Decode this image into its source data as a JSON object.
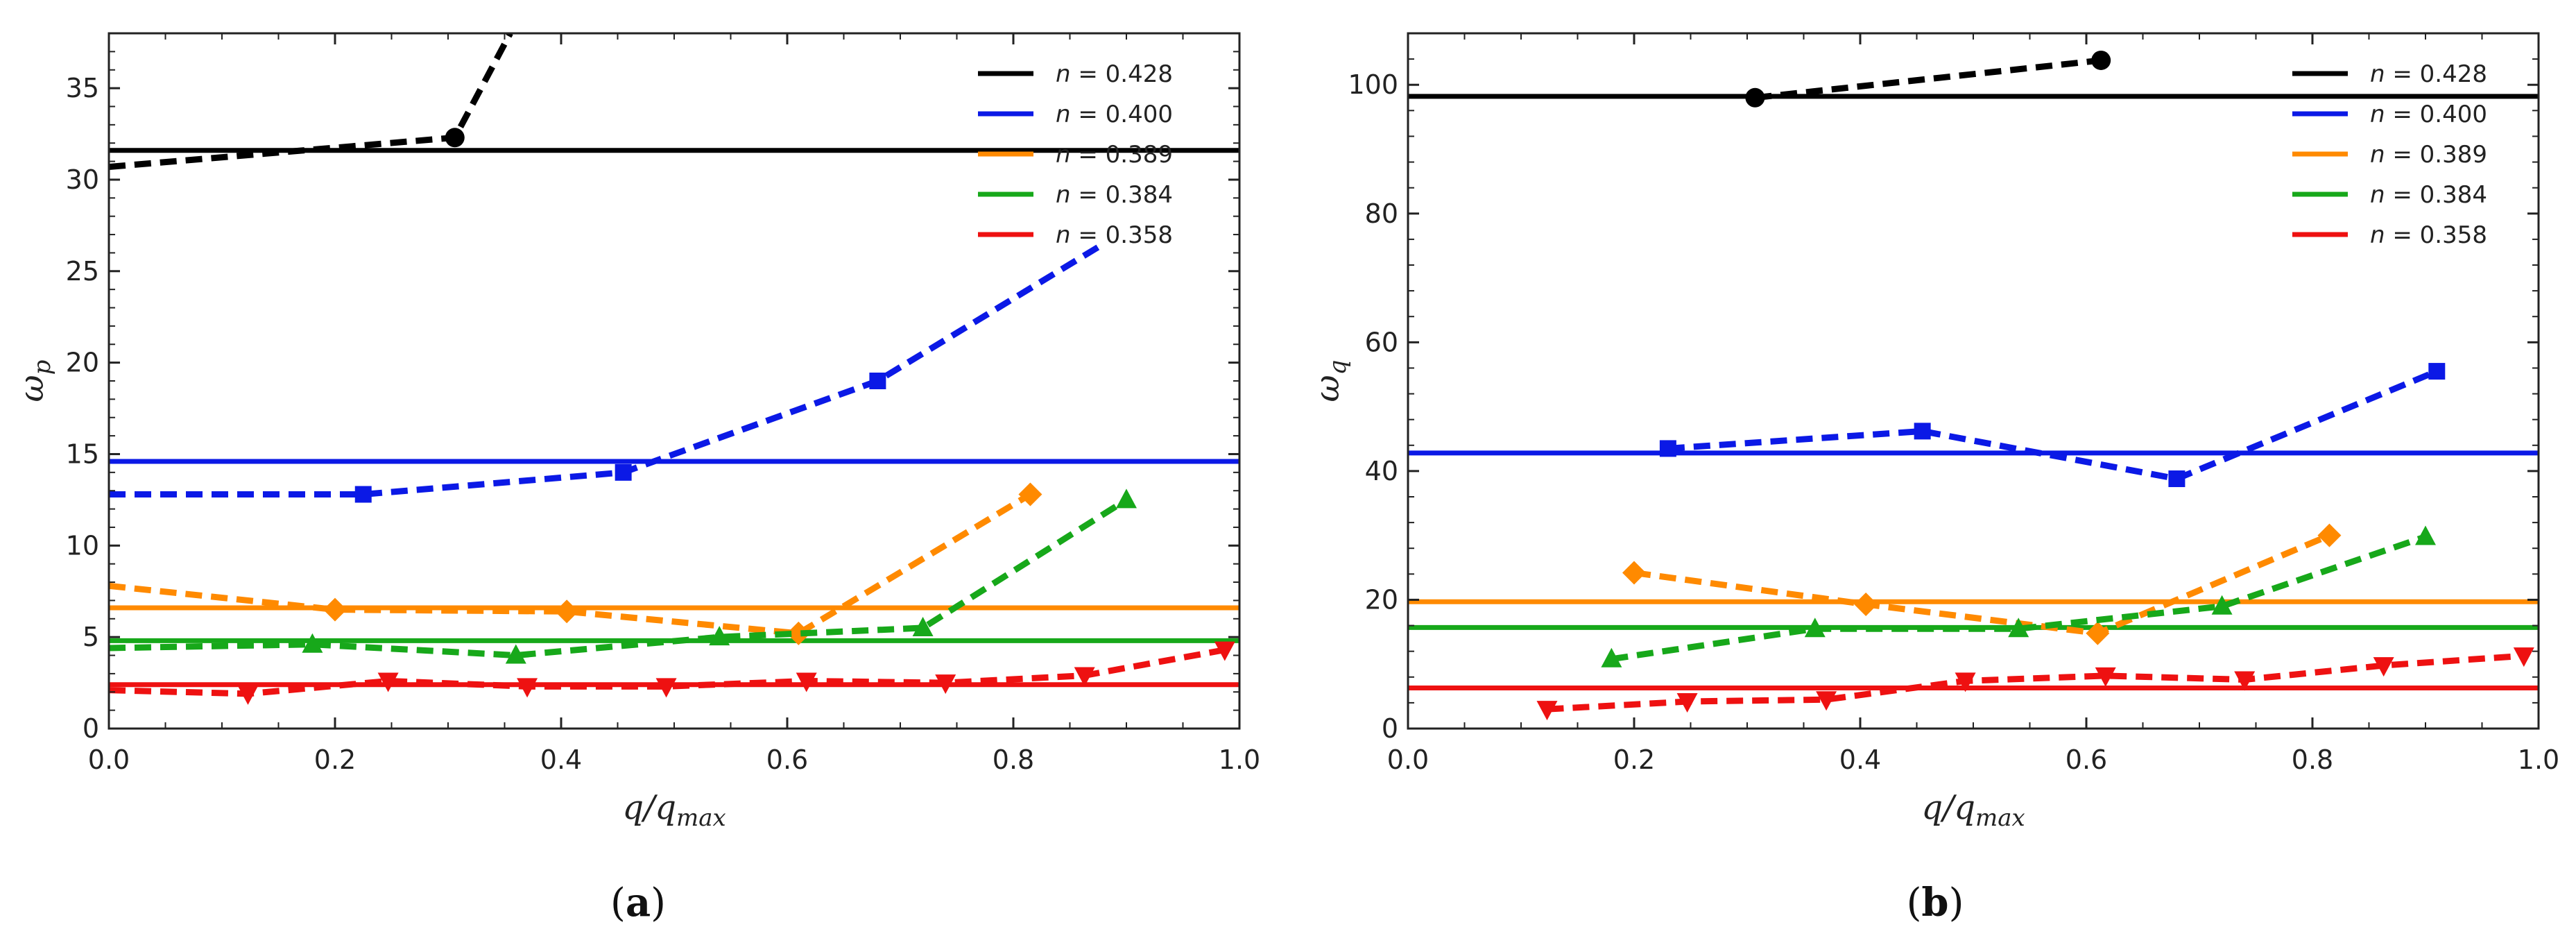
{
  "chart_data": [
    {
      "type": "line",
      "caption": "(a)",
      "xlabel": "q/q",
      "xlabel_sub": "max",
      "ylabel": "ω",
      "ylabel_sub": "p",
      "xlim": [
        0,
        1
      ],
      "ylim": [
        0,
        38
      ],
      "xticks": [
        "0.0",
        "0.2",
        "0.4",
        "0.6",
        "0.8",
        "1.0"
      ],
      "xtick_values": [
        0,
        0.2,
        0.4,
        0.6,
        0.8,
        1.0
      ],
      "yticks": [
        "0",
        "5",
        "10",
        "15",
        "20",
        "25",
        "30",
        "35"
      ],
      "ytick_values": [
        0,
        5,
        10,
        15,
        20,
        25,
        30,
        35
      ],
      "grid": false,
      "legend_position": "top-right",
      "series": [
        {
          "n_label": "0.428",
          "color": "#000000",
          "marker": "circle",
          "horizontal": 31.6,
          "points": [
            [
              0.0,
              30.7
            ],
            [
              0.306,
              32.3
            ],
            [
              0.355,
              38
            ]
          ],
          "marked": [
            [
              0.306,
              32.3
            ]
          ]
        },
        {
          "n_label": "0.400",
          "color": "#0b19e6",
          "marker": "square",
          "horizontal": 14.6,
          "points": [
            [
              0.0,
              12.8
            ],
            [
              0.225,
              12.8
            ],
            [
              0.455,
              14.0
            ],
            [
              0.68,
              19.0
            ],
            [
              0.88,
              26.5
            ]
          ],
          "marked": [
            [
              0.225,
              12.8
            ],
            [
              0.455,
              14.0
            ],
            [
              0.68,
              19.0
            ]
          ]
        },
        {
          "n_label": "0.389",
          "color": "#ff8a00",
          "marker": "diamond",
          "horizontal": 6.6,
          "points": [
            [
              0.0,
              7.8
            ],
            [
              0.2,
              6.5
            ],
            [
              0.405,
              6.4
            ],
            [
              0.61,
              5.2
            ],
            [
              0.815,
              12.8
            ]
          ],
          "marked": [
            [
              0.2,
              6.5
            ],
            [
              0.405,
              6.4
            ],
            [
              0.61,
              5.2
            ],
            [
              0.815,
              12.8
            ]
          ]
        },
        {
          "n_label": "0.384",
          "color": "#17a81a",
          "marker": "triangle-up",
          "horizontal": 4.8,
          "points": [
            [
              0.0,
              4.4
            ],
            [
              0.18,
              4.6
            ],
            [
              0.36,
              4.0
            ],
            [
              0.54,
              5.0
            ],
            [
              0.72,
              5.5
            ],
            [
              0.9,
              12.5
            ]
          ],
          "marked": [
            [
              0.18,
              4.6
            ],
            [
              0.36,
              4.0
            ],
            [
              0.54,
              5.0
            ],
            [
              0.72,
              5.5
            ],
            [
              0.9,
              12.5
            ]
          ]
        },
        {
          "n_label": "0.358",
          "color": "#ee1111",
          "marker": "triangle-down",
          "horizontal": 2.4,
          "points": [
            [
              0.0,
              2.1
            ],
            [
              0.123,
              1.9
            ],
            [
              0.247,
              2.6
            ],
            [
              0.37,
              2.3
            ],
            [
              0.493,
              2.3
            ],
            [
              0.617,
              2.6
            ],
            [
              0.74,
              2.5
            ],
            [
              0.863,
              2.9
            ],
            [
              0.987,
              4.3
            ]
          ],
          "marked": [
            [
              0.123,
              1.9
            ],
            [
              0.247,
              2.6
            ],
            [
              0.37,
              2.3
            ],
            [
              0.493,
              2.3
            ],
            [
              0.617,
              2.6
            ],
            [
              0.74,
              2.5
            ],
            [
              0.863,
              2.9
            ],
            [
              0.987,
              4.3
            ]
          ]
        }
      ]
    },
    {
      "type": "line",
      "caption": "(b)",
      "xlabel": "q/q",
      "xlabel_sub": "max",
      "ylabel": "ω",
      "ylabel_sub": "q",
      "xlim": [
        0,
        1
      ],
      "ylim": [
        0,
        108
      ],
      "xticks": [
        "0.0",
        "0.2",
        "0.4",
        "0.6",
        "0.8",
        "1.0"
      ],
      "xtick_values": [
        0,
        0.2,
        0.4,
        0.6,
        0.8,
        1.0
      ],
      "yticks": [
        "0",
        "20",
        "40",
        "60",
        "80",
        "100"
      ],
      "ytick_values": [
        0,
        20,
        40,
        60,
        80,
        100
      ],
      "grid": false,
      "legend_position": "top-right",
      "series": [
        {
          "n_label": "0.428",
          "color": "#000000",
          "marker": "circle",
          "horizontal": 98.2,
          "points": [
            [
              0.307,
              98.0
            ],
            [
              0.613,
              103.8
            ]
          ],
          "marked": [
            [
              0.307,
              98.0
            ],
            [
              0.613,
              103.8
            ]
          ]
        },
        {
          "n_label": "0.400",
          "color": "#0b19e6",
          "marker": "square",
          "horizontal": 42.8,
          "points": [
            [
              0.23,
              43.5
            ],
            [
              0.455,
              46.2
            ],
            [
              0.68,
              38.8
            ],
            [
              0.91,
              55.5
            ]
          ],
          "marked": [
            [
              0.23,
              43.5
            ],
            [
              0.455,
              46.2
            ],
            [
              0.68,
              38.8
            ],
            [
              0.91,
              55.5
            ]
          ]
        },
        {
          "n_label": "0.389",
          "color": "#ff8a00",
          "marker": "diamond",
          "horizontal": 19.7,
          "points": [
            [
              0.2,
              24.2
            ],
            [
              0.405,
              19.3
            ],
            [
              0.61,
              14.8
            ],
            [
              0.815,
              30.0
            ]
          ],
          "marked": [
            [
              0.2,
              24.2
            ],
            [
              0.405,
              19.3
            ],
            [
              0.61,
              14.8
            ],
            [
              0.815,
              30.0
            ]
          ]
        },
        {
          "n_label": "0.384",
          "color": "#17a81a",
          "marker": "triangle-up",
          "horizontal": 15.7,
          "points": [
            [
              0.18,
              10.8
            ],
            [
              0.36,
              15.5
            ],
            [
              0.54,
              15.5
            ],
            [
              0.72,
              19.0
            ],
            [
              0.9,
              29.8
            ]
          ],
          "marked": [
            [
              0.18,
              10.8
            ],
            [
              0.36,
              15.5
            ],
            [
              0.54,
              15.5
            ],
            [
              0.72,
              19.0
            ],
            [
              0.9,
              29.8
            ]
          ]
        },
        {
          "n_label": "0.358",
          "color": "#ee1111",
          "marker": "triangle-down",
          "horizontal": 6.3,
          "points": [
            [
              0.123,
              3.0
            ],
            [
              0.247,
              4.2
            ],
            [
              0.37,
              4.5
            ],
            [
              0.493,
              7.4
            ],
            [
              0.617,
              8.2
            ],
            [
              0.74,
              7.6
            ],
            [
              0.863,
              9.8
            ],
            [
              0.987,
              11.3
            ]
          ],
          "marked": [
            [
              0.123,
              3.0
            ],
            [
              0.247,
              4.2
            ],
            [
              0.37,
              4.5
            ],
            [
              0.493,
              7.4
            ],
            [
              0.617,
              8.2
            ],
            [
              0.74,
              7.6
            ],
            [
              0.863,
              9.8
            ],
            [
              0.987,
              11.3
            ]
          ]
        }
      ]
    }
  ]
}
